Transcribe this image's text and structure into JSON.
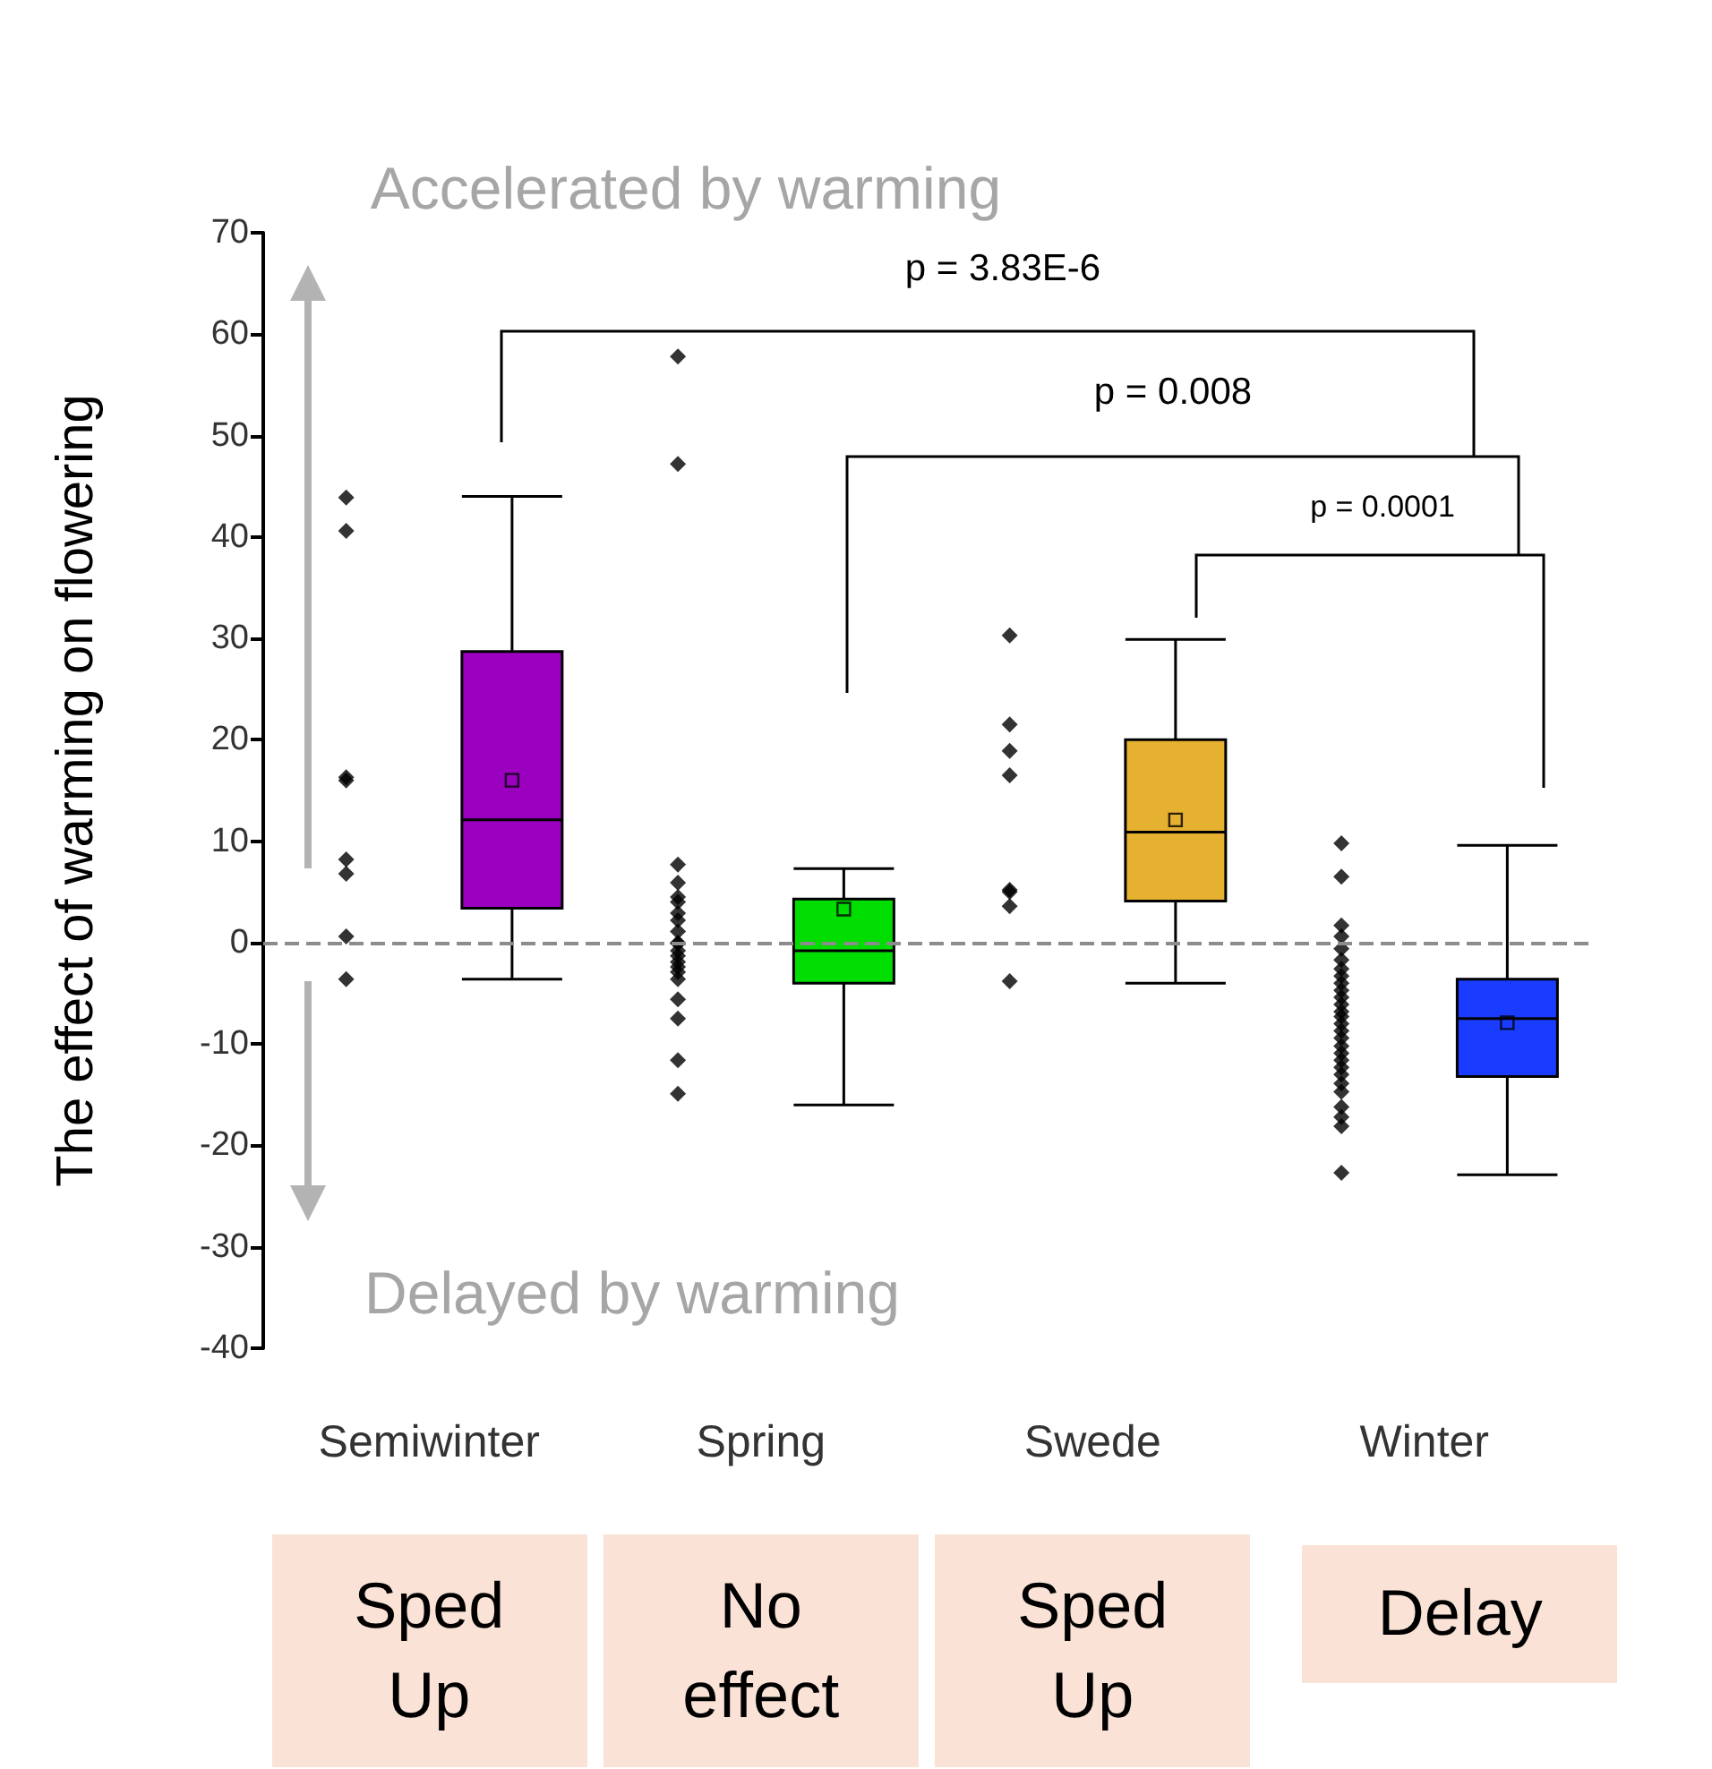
{
  "chart_data": {
    "type": "box",
    "ylabel": "The effect of warming on flowering",
    "categories": [
      "Semiwinter",
      "Spring",
      "Swede",
      "Winter"
    ],
    "colors": [
      "#9b00c0",
      "#00dd00",
      "#e6b030",
      "#1a3cff"
    ],
    "boxes": [
      {
        "low": -3.6,
        "q1": 3.4,
        "median": 12.1,
        "q3": 28.7,
        "high": 44,
        "mean": 16
      },
      {
        "low": -16,
        "q1": -4,
        "median": -0.8,
        "q3": 4.3,
        "high": 7.3,
        "mean": 3.3
      },
      {
        "low": -4,
        "q1": 4.1,
        "median": 10.9,
        "q3": 20,
        "high": 29.9,
        "mean": 12.1
      },
      {
        "low": -22.9,
        "q1": -13.2,
        "median": -7.5,
        "q3": -3.6,
        "high": 9.6,
        "mean": -7.9
      }
    ],
    "series": [
      {
        "type": "scatter",
        "color": "#000000",
        "marker": "diamond",
        "x": [
          "Semiwinter",
          "Semiwinter",
          "Semiwinter",
          "Semiwinter",
          "Semiwinter",
          "Semiwinter",
          "Semiwinter",
          "Semiwinter",
          "Spring",
          "Spring",
          "Spring",
          "Spring",
          "Spring",
          "Spring",
          "Spring",
          "Spring",
          "Spring",
          "Spring",
          "Spring",
          "Spring",
          "Spring",
          "Spring",
          "Spring",
          "Spring",
          "Spring",
          "Spring",
          "Spring",
          "Spring",
          "Spring",
          "Swede",
          "Swede",
          "Swede",
          "Swede",
          "Swede",
          "Swede",
          "Swede",
          "Swede",
          "Winter",
          "Winter",
          "Winter",
          "Winter",
          "Winter",
          "Winter",
          "Winter",
          "Winter",
          "Winter",
          "Winter",
          "Winter",
          "Winter",
          "Winter",
          "Winter",
          "Winter",
          "Winter",
          "Winter",
          "Winter",
          "Winter",
          "Winter",
          "Winter",
          "Winter",
          "Winter",
          "Winter",
          "Winter",
          "Winter",
          "Winter",
          "Winter"
        ],
        "values": [
          43.9,
          40.6,
          16.3,
          16,
          8.2,
          6.8,
          0.6,
          -3.6,
          57.8,
          47.2,
          7.7,
          5.9,
          4.5,
          4,
          2.9,
          2.2,
          1.1,
          0,
          -0.1,
          -0.8,
          -1.3,
          -1.9,
          -2.4,
          -2.9,
          -3.6,
          -5.6,
          -7.5,
          -11.6,
          -14.9,
          30.3,
          21.5,
          18.9,
          16.5,
          5.2,
          5,
          3.6,
          -3.8,
          9.8,
          6.5,
          1.7,
          0.6,
          -0.6,
          -1.7,
          -2.6,
          -3.3,
          -4,
          -4.7,
          -5.4,
          -6.1,
          -6.8,
          -7.3,
          -8,
          -8.7,
          -9.4,
          -10.2,
          -10.9,
          -11.6,
          -12.3,
          -13,
          -13.9,
          -14.7,
          -16.2,
          -17.2,
          -18.1,
          -22.7
        ]
      }
    ],
    "ylim": [
      -40,
      70
    ],
    "yticks": [
      -40,
      -30,
      -20,
      -10,
      0,
      10,
      20,
      30,
      40,
      50,
      60,
      70
    ],
    "grid": false,
    "ref_lines": [
      {
        "axis": "y",
        "value": 0,
        "color": "#8c8c8c",
        "line_style": "dashed"
      }
    ],
    "annotations": [
      "Accelerated by warming",
      "Delayed by warming",
      "p = 3.83E-6",
      "p = 0.008",
      "p = 0.0001",
      "Sped Up",
      "No effect",
      "Sped Up",
      "Delay"
    ]
  }
}
